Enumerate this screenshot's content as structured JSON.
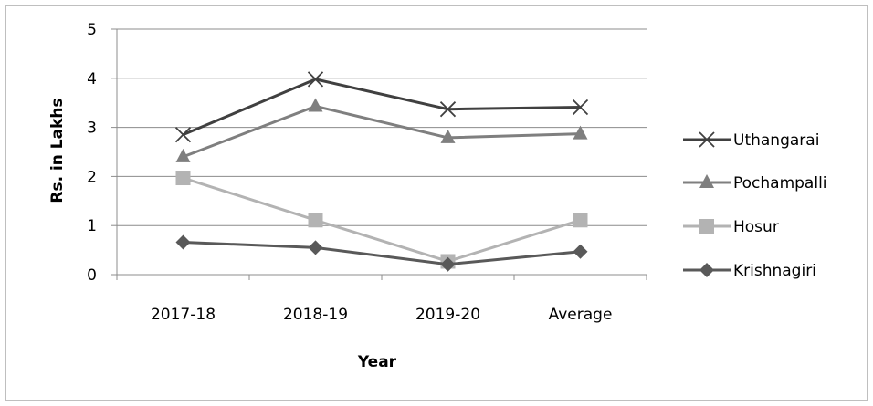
{
  "chart_data": {
    "type": "line",
    "title": "",
    "xlabel": "Year",
    "ylabel": "Rs. in Lakhs",
    "categories": [
      "2017-18",
      "2018-19",
      "2019-20",
      "Average"
    ],
    "ylim": [
      0,
      5
    ],
    "yticks": [
      "0",
      "1",
      "2",
      "3",
      "4",
      "5"
    ],
    "grid": true,
    "legend_position": "right",
    "series": [
      {
        "name": "Uthangarai",
        "values": [
          2.85,
          3.98,
          3.37,
          3.41
        ],
        "color": "#404040",
        "marker": "x"
      },
      {
        "name": "Pochampalli",
        "values": [
          2.4,
          3.43,
          2.79,
          2.87
        ],
        "color": "#7f7f7f",
        "marker": "triangle"
      },
      {
        "name": "Hosur",
        "values": [
          1.97,
          1.11,
          0.27,
          1.11
        ],
        "color": "#b3b3b3",
        "marker": "square"
      },
      {
        "name": "Krishnagiri",
        "values": [
          0.66,
          0.55,
          0.21,
          0.47
        ],
        "color": "#595959",
        "marker": "diamond"
      }
    ]
  }
}
